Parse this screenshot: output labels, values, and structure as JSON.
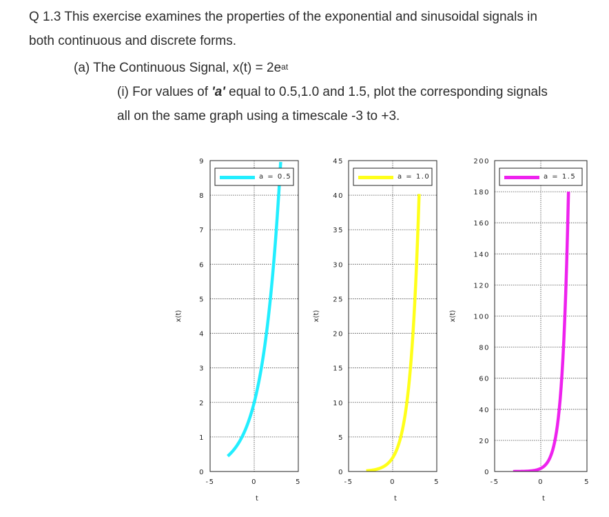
{
  "question": {
    "title": "Q 1.3  This exercise examines the properties of the exponential and sinusoidal signals in",
    "title_cont": "both continuous and discrete forms.",
    "part_a_prefix": "(a) The Continuous Signal, x(t) = 2e",
    "part_a_exponent": "at",
    "part_i_prefix": "(i) For values of ",
    "part_i_var": "'a'",
    "part_i_suffix": " equal to 0.5,1.0 and 1.5, plot the corresponding signals",
    "part_i_cont": "all on the same graph using a timescale -3 to +3."
  },
  "chart_data": [
    {
      "type": "line",
      "xlabel": "t",
      "ylabel": "x(t)",
      "xlim": [
        -5,
        5
      ],
      "ylim": [
        0,
        9
      ],
      "xticks": [
        -5,
        0,
        5
      ],
      "yticks": [
        0,
        1,
        2,
        3,
        4,
        5,
        6,
        7,
        8,
        9
      ],
      "grid": true,
      "legend_position": "top",
      "series": [
        {
          "name": "a = 0.5",
          "color": "#22eeff",
          "x": [
            -3,
            -2,
            -1,
            0,
            1,
            2,
            3
          ],
          "y": [
            0.446,
            0.736,
            1.213,
            2.0,
            3.297,
            5.437,
            8.963
          ]
        }
      ]
    },
    {
      "type": "line",
      "xlabel": "t",
      "ylabel": "x(t)",
      "xlim": [
        -5,
        5
      ],
      "ylim": [
        0,
        45
      ],
      "xticks": [
        -5,
        0,
        5
      ],
      "yticks": [
        0,
        5,
        10,
        15,
        20,
        25,
        30,
        35,
        40,
        45
      ],
      "grid": true,
      "legend_position": "top",
      "series": [
        {
          "name": "a = 1.0",
          "color": "#ffff1a",
          "x": [
            -3,
            -2,
            -1,
            0,
            1,
            2,
            3
          ],
          "y": [
            0.1,
            0.271,
            0.736,
            2.0,
            5.437,
            14.778,
            40.171
          ]
        }
      ]
    },
    {
      "type": "line",
      "xlabel": "t",
      "ylabel": "x(t)",
      "xlim": [
        -5,
        5
      ],
      "ylim": [
        0,
        200
      ],
      "xticks": [
        -5,
        0,
        5
      ],
      "yticks": [
        0,
        20,
        40,
        60,
        80,
        100,
        120,
        140,
        160,
        180,
        200
      ],
      "grid": true,
      "legend_position": "top",
      "series": [
        {
          "name": "a = 1.5",
          "color": "#ee22ee",
          "x": [
            -3,
            -2,
            -1,
            0,
            1,
            2,
            3
          ],
          "y": [
            0.022,
            0.1,
            0.446,
            2.0,
            8.963,
            40.171,
            180.034
          ]
        }
      ]
    }
  ]
}
